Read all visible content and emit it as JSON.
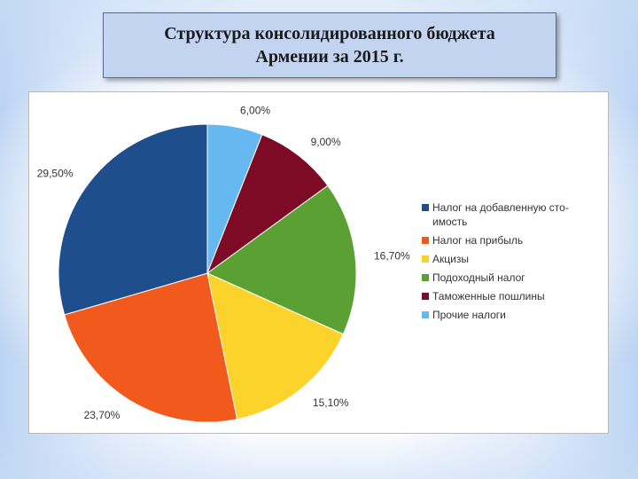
{
  "title": {
    "line1": "Структура консолидированного бюджета",
    "line2": "Армении за 2015 г."
  },
  "chart_data": {
    "type": "pie",
    "categories": [
      "Налог на добавленную стоимость",
      "Налог на прибыль",
      "Акцизы",
      "Подоходный налог",
      "Таможенные пошлины",
      "Прочие налоги"
    ],
    "values": [
      29.5,
      23.7,
      15.1,
      16.7,
      9.0,
      6.0
    ],
    "value_labels": [
      "29,50%",
      "23,70%",
      "15,10%",
      "16,70%",
      "9,00%",
      "6,00%"
    ],
    "legend_lines": [
      [
        "Налог на добавленную сто-",
        "имость"
      ],
      [
        "Налог на прибыль"
      ],
      [
        "Акцизы"
      ],
      [
        "Подоходный налог"
      ],
      [
        "Таможенные пошлины"
      ],
      [
        "Прочие налоги"
      ]
    ],
    "colors": [
      "#1f4e8c",
      "#f25a1d",
      "#fcd32a",
      "#5aa032",
      "#7d0b26",
      "#66b8f0"
    ],
    "legend_placement": "right",
    "draw_order": [
      5,
      4,
      3,
      2,
      1,
      0
    ]
  }
}
